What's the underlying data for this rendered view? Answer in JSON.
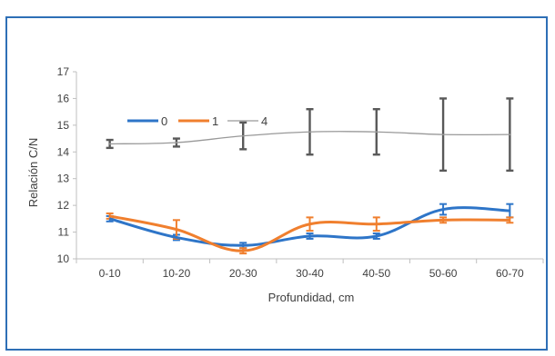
{
  "chart_data": {
    "type": "line",
    "title": "",
    "xlabel": "Profundidad, cm",
    "ylabel": "Relación C/N",
    "categories": [
      "0-10",
      "10-20",
      "20-30",
      "30-40",
      "40-50",
      "50-60",
      "60-70"
    ],
    "ylim": [
      10,
      17
    ],
    "yticks": [
      "10",
      "11",
      "12",
      "13",
      "14",
      "15",
      "16",
      "17"
    ],
    "grid": false,
    "legend_position": "top-left",
    "series": [
      {
        "name": "0",
        "color": "#2e75c8",
        "values": [
          11.5,
          10.8,
          10.5,
          10.85,
          10.85,
          11.85,
          11.8
        ],
        "errors": [
          0.1,
          0.1,
          0.1,
          0.1,
          0.1,
          0.2,
          0.25
        ]
      },
      {
        "name": "1",
        "color": "#f07f2e",
        "values": [
          11.6,
          11.1,
          10.3,
          11.3,
          11.3,
          11.45,
          11.45
        ],
        "errors": [
          0.1,
          0.35,
          0.1,
          0.25,
          0.25,
          0.1,
          0.1
        ]
      },
      {
        "name": "4",
        "color": "#999999",
        "values": [
          14.3,
          14.35,
          14.6,
          14.75,
          14.75,
          14.65,
          14.65
        ],
        "errors": [
          0.15,
          0.15,
          0.5,
          0.85,
          0.85,
          1.35,
          1.35
        ]
      }
    ]
  }
}
